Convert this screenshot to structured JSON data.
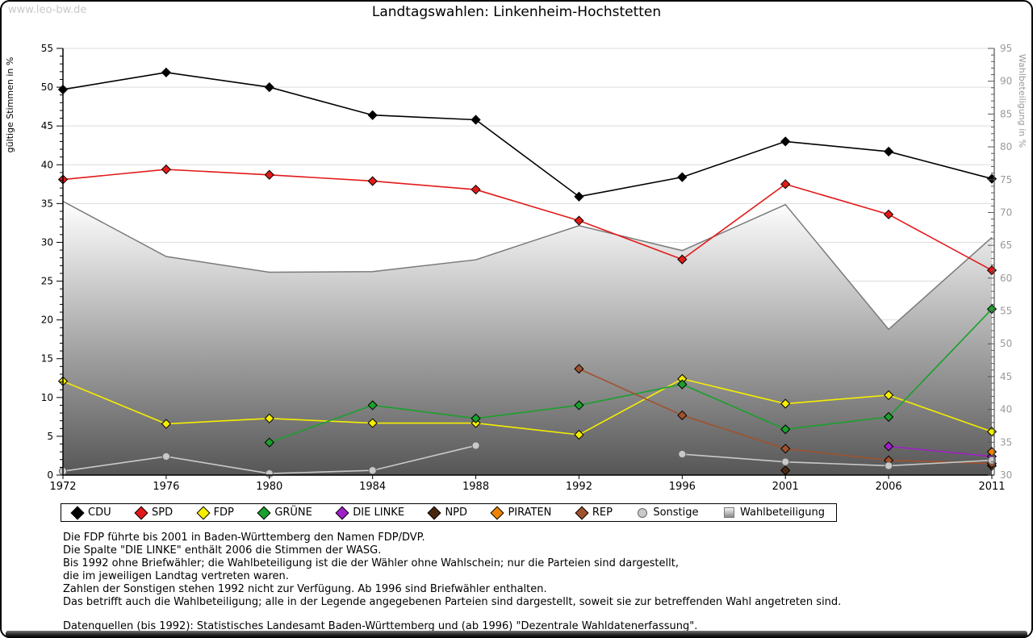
{
  "watermark": "www.leo-bw.de",
  "title": "Landtagswahlen: Linkenheim-Hochstetten",
  "chart_data": {
    "type": "line",
    "x": [
      1972,
      1976,
      1980,
      1984,
      1988,
      1992,
      1996,
      2001,
      2006,
      2011
    ],
    "left_axis": {
      "label": "gültige Stimmen in %",
      "range": [
        0,
        55
      ],
      "tick_step": 5,
      "minor_step": 1
    },
    "right_axis": {
      "label": "Wahlbeteiligung in %",
      "range": [
        30,
        95
      ],
      "tick_step": 5,
      "minor_step": 1
    },
    "grid": "horizontal",
    "legend_position": "bottom",
    "series": [
      {
        "name": "CDU",
        "color": "#000000",
        "marker": "diamond",
        "axis": "left",
        "values": [
          49.7,
          51.9,
          50.0,
          46.4,
          45.8,
          35.9,
          38.4,
          43.0,
          41.7,
          38.2
        ]
      },
      {
        "name": "SPD",
        "color": "#e31919",
        "marker": "diamond",
        "axis": "left",
        "values": [
          38.1,
          39.4,
          38.7,
          37.9,
          36.8,
          32.8,
          27.8,
          37.5,
          33.6,
          26.4
        ]
      },
      {
        "name": "FDP",
        "color": "#f5ee00",
        "marker": "diamond",
        "axis": "left",
        "values": [
          12.1,
          6.6,
          7.3,
          6.7,
          6.7,
          5.2,
          12.4,
          9.2,
          10.3,
          5.6
        ]
      },
      {
        "name": "GRÜNE",
        "color": "#1aa02c",
        "marker": "diamond",
        "axis": "left",
        "values": [
          null,
          null,
          4.2,
          9.0,
          7.3,
          9.0,
          11.7,
          5.9,
          7.5,
          21.4
        ]
      },
      {
        "name": "DIE LINKE",
        "color": "#a020c8",
        "marker": "diamond",
        "axis": "left",
        "values": [
          null,
          null,
          null,
          null,
          null,
          null,
          null,
          null,
          3.7,
          2.4
        ]
      },
      {
        "name": "NPD",
        "color": "#4a2810",
        "marker": "diamond",
        "axis": "left",
        "values": [
          null,
          null,
          null,
          null,
          null,
          null,
          null,
          0.6,
          null,
          1.2
        ]
      },
      {
        "name": "PIRATEN",
        "color": "#ef8200",
        "marker": "diamond",
        "axis": "left",
        "values": [
          null,
          null,
          null,
          null,
          null,
          null,
          null,
          null,
          null,
          3.0
        ]
      },
      {
        "name": "REP",
        "color": "#a0522d",
        "marker": "diamond",
        "axis": "left",
        "values": [
          null,
          null,
          null,
          null,
          null,
          13.7,
          7.7,
          3.4,
          1.9,
          1.5
        ]
      },
      {
        "name": "Sonstige",
        "color": "#c9c9c9",
        "marker": "circle",
        "axis": "left",
        "values": [
          0.5,
          2.4,
          0.2,
          0.6,
          3.8,
          null,
          2.7,
          1.7,
          1.2,
          1.9
        ]
      },
      {
        "name": "Wahlbeteiligung",
        "color": "#7a7a7a",
        "marker": "square",
        "axis": "right",
        "style": "area",
        "area_gradient": [
          "#ffffff",
          "#565656"
        ],
        "values": [
          71.7,
          63.3,
          60.9,
          61.0,
          62.8,
          68.0,
          64.2,
          71.2,
          52.2,
          66.2
        ]
      }
    ]
  },
  "footnotes": [
    "Die FDP führte bis 2001 in Baden-Württemberg den Namen FDP/DVP.",
    "Die Spalte \"DIE LINKE\" enthält 2006 die Stimmen der WASG.",
    "Bis 1992 ohne Briefwähler; die Wahlbeteiligung ist die der Wähler ohne Wahlschein; nur die Parteien sind dargestellt,",
    "die im jeweiligen Landtag vertreten waren.",
    "Zahlen der Sonstigen stehen 1992 nicht zur Verfügung. Ab 1996 sind Briefwähler enthalten.",
    "Das betrifft auch die Wahlbeteiligung; alle in der Legende angegebenen Parteien sind dargestellt, soweit sie zur betreffenden Wahl angetreten sind."
  ],
  "source_line": "Datenquellen (bis 1992): Statistisches Landesamt Baden-Württemberg und (ab 1996) \"Dezentrale Wahldatenerfassung\"."
}
